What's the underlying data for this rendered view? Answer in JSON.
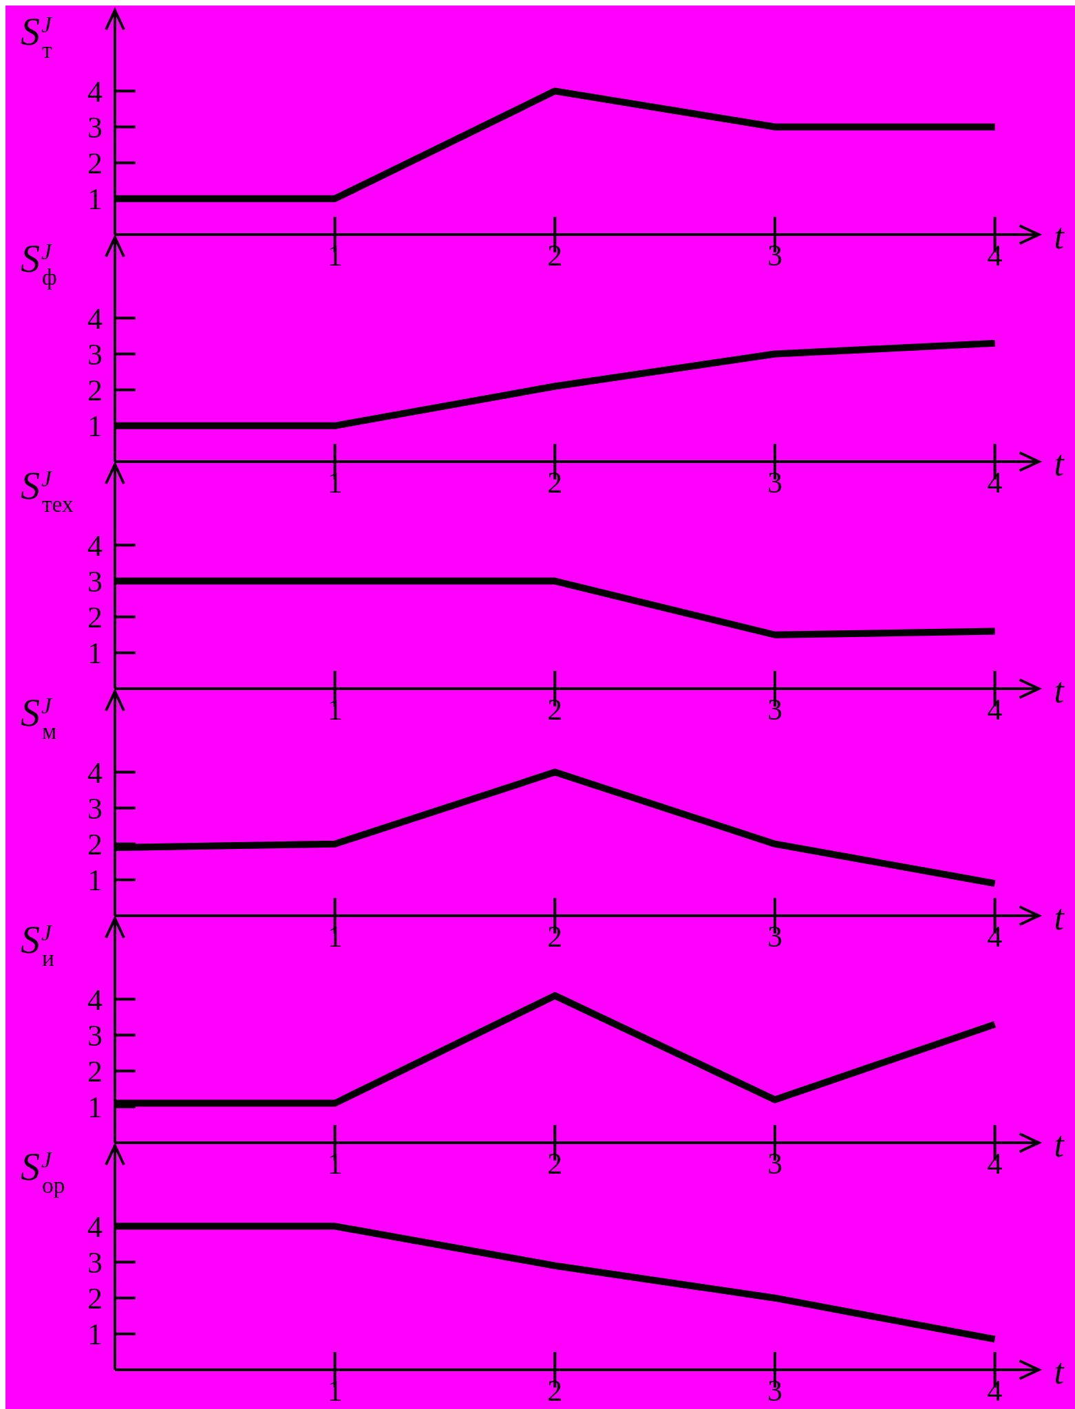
{
  "chart_data": [
    {
      "type": "line",
      "ylabel": "S$^{J}$$_{т}$",
      "xlabel": "t",
      "x": [
        0,
        1,
        2,
        3,
        4
      ],
      "xlim": [
        0,
        4.2
      ],
      "ylim": [
        0,
        6.25
      ],
      "xticks": [
        1,
        2,
        3,
        4
      ],
      "yticks": [
        1,
        2,
        3,
        4
      ],
      "series": [
        {
          "color": "#000000",
          "values": [
            1,
            1,
            4,
            3,
            3
          ]
        }
      ]
    },
    {
      "type": "line",
      "ylabel": "S$^{J}$$_{ф}$",
      "xlabel": "t",
      "x": [
        0,
        1,
        2,
        3,
        4
      ],
      "xlim": [
        0,
        4.2
      ],
      "ylim": [
        0,
        6.25
      ],
      "xticks": [
        1,
        2,
        3,
        4
      ],
      "yticks": [
        1,
        2,
        3,
        4
      ],
      "series": [
        {
          "color": "#000000",
          "values": [
            1,
            1,
            2.1,
            3,
            3.3
          ]
        }
      ]
    },
    {
      "type": "line",
      "ylabel": "S$^{J}$$_{тех}$",
      "xlabel": "t",
      "x": [
        0,
        1,
        2,
        3,
        4
      ],
      "xlim": [
        0,
        4.2
      ],
      "ylim": [
        0,
        6.25
      ],
      "xticks": [
        1,
        2,
        3,
        4
      ],
      "yticks": [
        1,
        2,
        3,
        4
      ],
      "series": [
        {
          "color": "#000000",
          "values": [
            3,
            3,
            3,
            1.5,
            1.6
          ]
        }
      ]
    },
    {
      "type": "line",
      "ylabel": "S$^{J}$$_{м}$",
      "xlabel": "t",
      "x": [
        0,
        1,
        2,
        3,
        4
      ],
      "xlim": [
        0,
        4.2
      ],
      "ylim": [
        0,
        6.25
      ],
      "xticks": [
        1,
        2,
        3,
        4
      ],
      "yticks": [
        1,
        2,
        3,
        4
      ],
      "series": [
        {
          "color": "#000000",
          "values": [
            1.9,
            2,
            4,
            2,
            0.9
          ]
        }
      ]
    },
    {
      "type": "line",
      "ylabel": "S$^{J}$$_{и}$",
      "xlabel": "t",
      "x": [
        0,
        1,
        2,
        3,
        4
      ],
      "xlim": [
        0,
        4.2
      ],
      "ylim": [
        0,
        6.25
      ],
      "xticks": [
        1,
        2,
        3,
        4
      ],
      "yticks": [
        1,
        2,
        3,
        4
      ],
      "series": [
        {
          "color": "#000000",
          "values": [
            1.1,
            1.1,
            4.1,
            1.2,
            3.3
          ]
        }
      ]
    },
    {
      "type": "line",
      "ylabel": "S$^{J}$$_{ор}$",
      "xlabel": "t",
      "x": [
        0,
        1,
        2,
        3,
        4
      ],
      "xlim": [
        0,
        4.2
      ],
      "ylim": [
        0,
        6.25
      ],
      "xticks": [
        1,
        2,
        3,
        4
      ],
      "yticks": [
        1,
        2,
        3,
        4
      ],
      "series": [
        {
          "color": "#000000",
          "values": [
            4,
            4,
            2.9,
            2,
            0.85
          ]
        }
      ]
    }
  ]
}
